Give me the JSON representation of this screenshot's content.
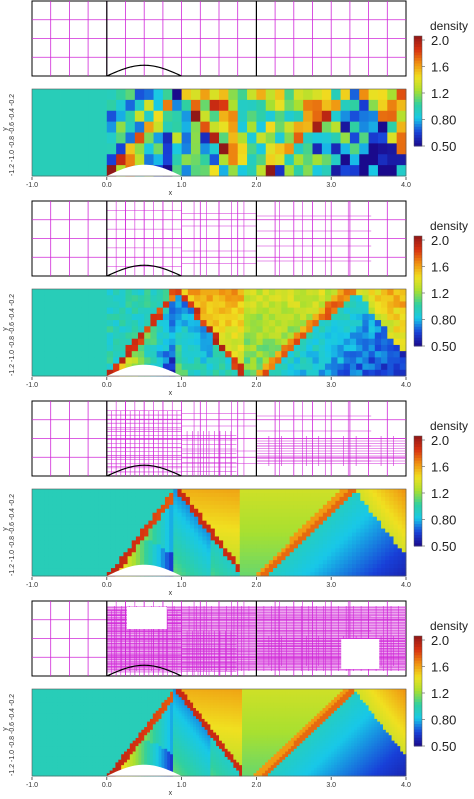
{
  "chart_data": [
    {
      "type": "heatmap",
      "title": "",
      "xlabel": "x",
      "ylabel": "y",
      "xlim": [
        -1.0,
        4.0
      ],
      "ylim": [
        -1.2,
        -0.2
      ],
      "xticks": [
        "-1.0",
        "0.0",
        "1.0",
        "2.0",
        "3.0",
        "4.0"
      ],
      "yticks": [
        "-1.2",
        "-1.0",
        "-0.8",
        "-0.6",
        "-0.4",
        "-0.2"
      ],
      "colorbar": {
        "label": "density",
        "ticks": [
          "2.0",
          "1.6",
          "1.2",
          "0.80",
          "0.50"
        ],
        "range": [
          0.5,
          2.0
        ]
      },
      "mesh_refinement_levels": 0,
      "bump_x_range": [
        0.0,
        1.0
      ],
      "freestream_density": 1.0,
      "shock_resolution": "coarse"
    },
    {
      "type": "heatmap",
      "title": "",
      "xlabel": "x",
      "ylabel": "y",
      "xlim": [
        -1.0,
        4.0
      ],
      "ylim": [
        -1.2,
        -0.2
      ],
      "xticks": [
        "-1.0",
        "0.0",
        "1.0",
        "2.0",
        "3.0",
        "4.0"
      ],
      "yticks": [
        "-1.2",
        "-1.0",
        "-0.8",
        "-0.6",
        "-0.4",
        "-0.2"
      ],
      "colorbar": {
        "label": "density",
        "ticks": [
          "2.0",
          "1.6",
          "1.2",
          "0.80",
          "0.50"
        ],
        "range": [
          0.5,
          2.0
        ]
      },
      "mesh_refinement_levels": 1,
      "bump_x_range": [
        0.0,
        1.0
      ],
      "freestream_density": 1.0,
      "shock_resolution": "medium"
    },
    {
      "type": "heatmap",
      "title": "",
      "xlabel": "x",
      "ylabel": "y",
      "xlim": [
        -1.0,
        4.0
      ],
      "ylim": [
        -1.2,
        -0.2
      ],
      "xticks": [
        "-1.0",
        "0.0",
        "1.0",
        "2.0",
        "3.0",
        "4.0"
      ],
      "yticks": [
        "-1.2",
        "-1.0",
        "-0.8",
        "-0.6",
        "-0.4",
        "-0.2"
      ],
      "colorbar": {
        "label": "density",
        "ticks": [
          "2.0",
          "1.6",
          "1.2",
          "0.80",
          "0.50"
        ],
        "range": [
          0.5,
          2.0
        ]
      },
      "mesh_refinement_levels": 2,
      "bump_x_range": [
        0.0,
        1.0
      ],
      "freestream_density": 1.0,
      "shock_resolution": "fine"
    },
    {
      "type": "heatmap",
      "title": "",
      "xlabel": "x",
      "ylabel": "y",
      "xlim": [
        -1.0,
        4.0
      ],
      "ylim": [
        -1.2,
        -0.2
      ],
      "xticks": [
        "-1.0",
        "0.0",
        "1.0",
        "2.0",
        "3.0",
        "4.0"
      ],
      "yticks": [
        "-1.2",
        "-1.0",
        "-0.8",
        "-0.6",
        "-0.4",
        "-0.2"
      ],
      "colorbar": {
        "label": "density",
        "ticks": [
          "2.0",
          "1.6",
          "1.2",
          "0.80",
          "0.50"
        ],
        "range": [
          0.5,
          2.0
        ]
      },
      "mesh_refinement_levels": 3,
      "bump_x_range": [
        0.0,
        1.0
      ],
      "freestream_density": 1.0,
      "shock_resolution": "finest"
    }
  ],
  "colors": {
    "mesh_line": "#d028d8",
    "block_line": "#000000",
    "freestream": "#32c8a6",
    "colormap": [
      "#1a0a8c",
      "#1840d8",
      "#18c8e8",
      "#30d0a0",
      "#a8e030",
      "#f0e020",
      "#f09010",
      "#d83010",
      "#901818"
    ]
  }
}
